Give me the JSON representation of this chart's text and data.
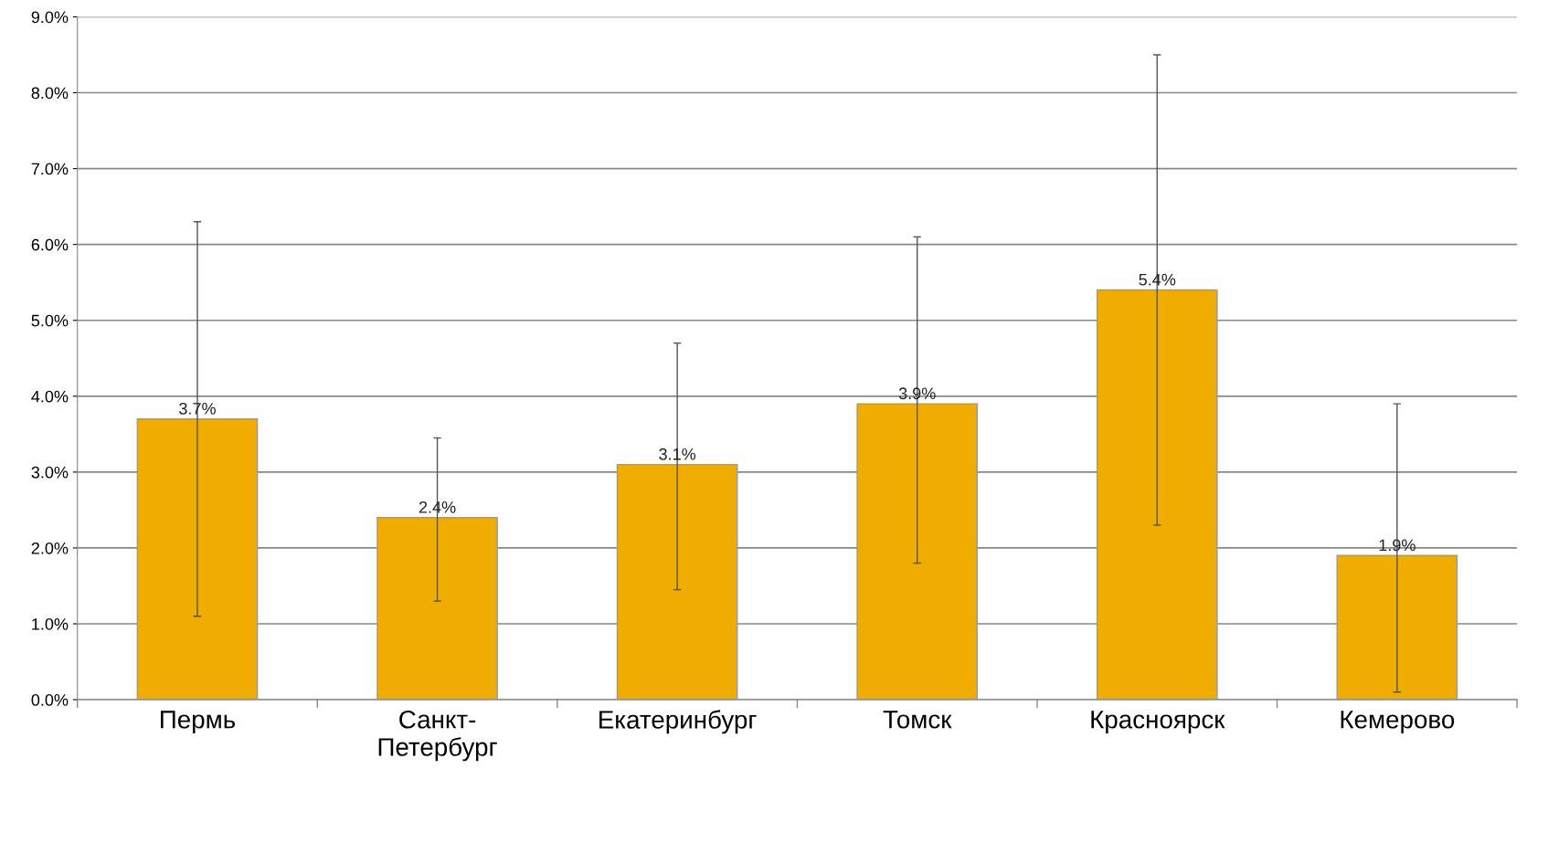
{
  "chart_data": {
    "type": "bar",
    "categories": [
      "Пермь",
      "Санкт-\nПетербург",
      "Екатеринбург",
      "Томск",
      "Красноярск",
      "Кемерово"
    ],
    "values": [
      3.7,
      2.4,
      3.1,
      3.9,
      5.4,
      1.9
    ],
    "value_labels": [
      "3.7%",
      "2.4%",
      "3.1%",
      "3.9%",
      "5.4%",
      "1.9%"
    ],
    "errors": [
      [
        1.1,
        6.3
      ],
      [
        1.3,
        3.45
      ],
      [
        1.45,
        4.7
      ],
      [
        1.8,
        6.1
      ],
      [
        2.3,
        8.5
      ],
      [
        0.1,
        3.9
      ]
    ],
    "color": "#f0ad00",
    "ylim": [
      0,
      9
    ],
    "yticks": [
      {
        "value": 0,
        "label": "0.0%"
      },
      {
        "value": 1,
        "label": "1.0%"
      },
      {
        "value": 2,
        "label": "2.0%"
      },
      {
        "value": 3,
        "label": "3.0%"
      },
      {
        "value": 4,
        "label": "4.0%"
      },
      {
        "value": 5,
        "label": "5.0%"
      },
      {
        "value": 6,
        "label": "6.0%"
      },
      {
        "value": 7,
        "label": "7.0%"
      },
      {
        "value": 8,
        "label": "8.0%"
      },
      {
        "value": 9,
        "label": "9.0%"
      }
    ],
    "grid": "y"
  }
}
